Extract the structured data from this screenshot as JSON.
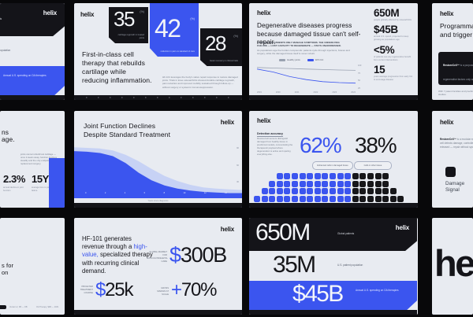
{
  "brand": {
    "name": "helix",
    "accent": "#3b55ef",
    "dark": "#141419",
    "light_bg": "#e8ebf1"
  },
  "slide_market": {
    "logo": "helix",
    "bands": [
      {
        "value": "650M",
        "caption": "Global patients"
      },
      {
        "value": "35M",
        "caption": "U.S. patient population"
      },
      {
        "value": "$45B",
        "caption": "Annual U.S. spending on OA therapies"
      }
    ]
  },
  "slide_stats": {
    "logo": "helix",
    "heading": "First-in-class cell therapy that rebuilds cartilage while reducing inflammation.",
    "cards": [
      {
        "value": "35",
        "unit": "(%)",
        "caption": "cartilage regrowth in treated joints"
      },
      {
        "value": "42",
        "unit": "(%)",
        "caption": "reduction in pain vs standard of care"
      },
      {
        "value": "28",
        "unit": "(%)",
        "caption": "faster recovery in clinical trials"
      }
    ],
    "body": "HF-101 leverages the body's native repair response to restore damaged joints. Trials in knee osteoarthritis showed durable cartilage regrowth, pain reduction and improved mobility sustained through follow-up — without surgery or systemic immunosuppression."
  },
  "slide_problem": {
    "logo": "helix",
    "heading": "Degenerative diseases progress because damaged tissue can't self-repair.",
    "subhead": "CURRENT TREATMENTS ONLY MANAGE SYMPTOMS. THE UNDERLYING FAILURE — LOST CAPACITY TO REGENERATE — STAYS UNADDRESSED.",
    "body": "As populations age the burden compounds: patients cycle through injections, braces and surgery, while the damaged tissue itself is never rebuilt.",
    "stats": [
      {
        "value": "650M",
        "caption": "people globally affected by osteoarthritis"
      },
      {
        "value": "$45B",
        "caption": "annual U.S. spend, projected to keep growing as populations age"
      },
      {
        "value": "<5%",
        "caption": "of patients see any regenerative benefit from current interventions"
      },
      {
        "value": "15",
        "caption": "years average progression from early OA to end-stage disease"
      }
    ]
  },
  "slide_platform": {
    "logo": "helix",
    "heading_line1": "Programmable cells that sense",
    "heading_line2": "and trigger tissue repair",
    "box_lead": "RestoreCell™",
    "box_text": " is a purpose-built platform designed to detect early degeneration and release regenerative factors only where needed, restoring tissue instead of masking symptoms.",
    "note": "With 7 patent families and preclinical data showing durable integration, the platform is ready for IND-enabling studies."
  },
  "slide_decline": {
    "frag1": "ns",
    "frag2": "age.",
    "body": "joints cannot rebuild lost cartilage — once it wears away, function declines steadily and the only endpoint is replacement surgery.",
    "stats": [
      {
        "value": "2.3%",
        "caption": "annual decline in joint function"
      },
      {
        "value": "15Y",
        "caption": "average time to joint failure"
      }
    ]
  },
  "slide_joint": {
    "logo": "helix",
    "heading_line1": "Joint Function Declines",
    "heading_line2": "Despite Standard Treatment"
  },
  "slide_detection": {
    "logo": "helix",
    "label": "Detection accuracy",
    "body": "RestoreCell sensors distinguish damaged from healthy tissue in preclinical models, concentrating the therapeutic payload where degeneration is active and sparing everything else.",
    "stat_blue": "62%",
    "stat_dark": "38%",
    "pill_blue": "Enhanced cells in damaged tissue",
    "pill_dark": "Cells in other tissue"
  },
  "slide_mechanism": {
    "logo": "helix",
    "para_lead": "RestoreCell™",
    "para_text": " is a modular system of gene circuits. When the cell detects damage, controlled doses of repair factors are released — repair without systemic exposure.",
    "icon_label": "Damage Signal"
  },
  "slide_empty": {
    "frag1": "s for",
    "frag2": "on",
    "footer_item1": "Version 2, FB — OB",
    "footer_item2": "OA Therapy, $4B — 2031"
  },
  "slide_revenue": {
    "logo": "helix",
    "para_pre": "HF-101 generates revenue through a ",
    "para_hl": "high-value,",
    "para_post": " specialized therapy with recurring clinical demand.",
    "stats": [
      {
        "prefix": "$",
        "value": "300B",
        "caption": "GLOBAL MARKET FOR MUSCULOSKELETAL CARE"
      },
      {
        "prefix": "$",
        "value": "25k",
        "caption": "PRICE PER TREATMENT COURSE"
      },
      {
        "prefix": "+",
        "value": "70%",
        "caption": "GROSS MARGIN AT SCALE"
      }
    ]
  },
  "slide_wordmark": {
    "text": "helix"
  },
  "chart_data": [
    {
      "type": "line",
      "context": "slide: Degenerative diseases progress",
      "legend": [
        "Healthy joints",
        "With OA"
      ],
      "colors": [
        "#9aa2b1",
        "#3b55ef"
      ],
      "x": [
        "2019",
        "2020",
        "2021",
        "2022",
        "2023",
        "2024",
        "2025"
      ],
      "series": [
        {
          "name": "Healthy joints",
          "values": [
            88,
            86,
            84,
            82,
            80,
            78,
            77
          ]
        },
        {
          "name": "With OA",
          "values": [
            82,
            70,
            52,
            40,
            32,
            28,
            26
          ]
        }
      ],
      "ylim": [
        0,
        100
      ],
      "yticks": [
        "100",
        "75",
        "50",
        "25"
      ],
      "legend_position": "top"
    },
    {
      "type": "area",
      "title": "Joint Function Declines Despite Standard Treatment",
      "xlabel": "Years since diagnosis",
      "xticks": [
        "0",
        "2",
        "4",
        "6",
        "8",
        "10",
        "12",
        "14"
      ],
      "yticks": [
        "90",
        "60",
        "30"
      ],
      "ylim": [
        0,
        100
      ],
      "series": [
        {
          "name": "Projected decline band",
          "color": "#c7d2f5",
          "values": [
            80,
            79,
            78,
            75,
            68,
            58,
            46,
            35,
            27,
            21,
            17,
            15,
            14,
            13
          ]
        },
        {
          "name": "Observed joint function",
          "color": "#3b55ef",
          "values": [
            74,
            73,
            71,
            66,
            55,
            40,
            28,
            20,
            15,
            12,
            10,
            9,
            8,
            8
          ]
        }
      ],
      "grid": false
    },
    {
      "type": "waffle",
      "context": "Detection accuracy split",
      "blue_pct": 62,
      "black_pct": 38,
      "colors": {
        "blue": "#3b55ef",
        "black": "#17171a"
      },
      "rows": [
        {
          "indent": 3,
          "blue": 10,
          "black": 5
        },
        {
          "indent": 2,
          "blue": 11,
          "black": 5
        },
        {
          "indent": 1,
          "blue": 12,
          "black": 6
        },
        {
          "indent": 0,
          "blue": 13,
          "black": 7
        }
      ]
    }
  ]
}
